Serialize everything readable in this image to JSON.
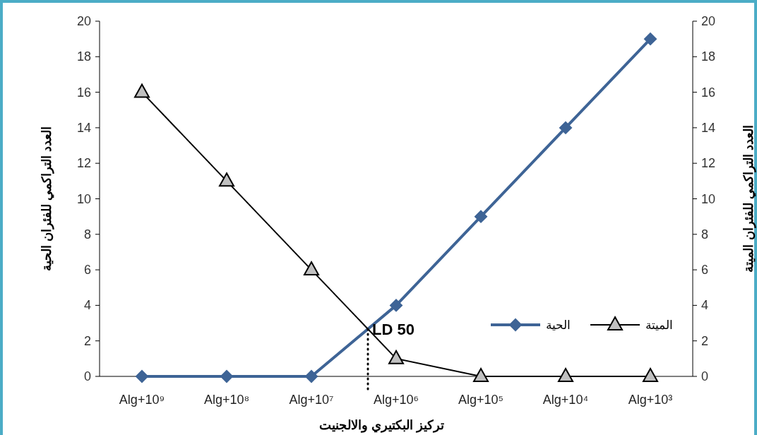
{
  "chart_data": {
    "type": "line",
    "xlabel": "تركيز البكتيري والالجنيت",
    "ylabel": "العدد التراكمي للفئران الحية",
    "y2label": "العدد التراكمي للفئران الميتة",
    "categories": [
      "Alg+10⁹",
      "Alg+10⁸",
      "Alg+10⁷",
      "Alg+10⁶",
      "Alg+10⁵",
      "Alg+10⁴",
      "Alg+10³"
    ],
    "series": [
      {
        "name": "الحية",
        "color": "#3e6496",
        "marker": "diamond",
        "values": [
          0,
          0,
          0,
          4,
          9,
          14,
          19
        ]
      },
      {
        "name": "الميتة",
        "color": "#000000",
        "marker": "triangle",
        "axis": "y2",
        "values": [
          16,
          11,
          6,
          1,
          0,
          0,
          0
        ]
      }
    ],
    "ylim": [
      0,
      20
    ],
    "yticks": [
      0,
      2,
      4,
      6,
      8,
      10,
      12,
      14,
      16,
      18,
      20
    ],
    "y2lim": [
      0,
      20
    ],
    "y2ticks": [
      0,
      2,
      4,
      6,
      8,
      10,
      12,
      14,
      16,
      18,
      20
    ],
    "annotations": [
      "LD 50"
    ],
    "legend": "right",
    "grid": false
  }
}
